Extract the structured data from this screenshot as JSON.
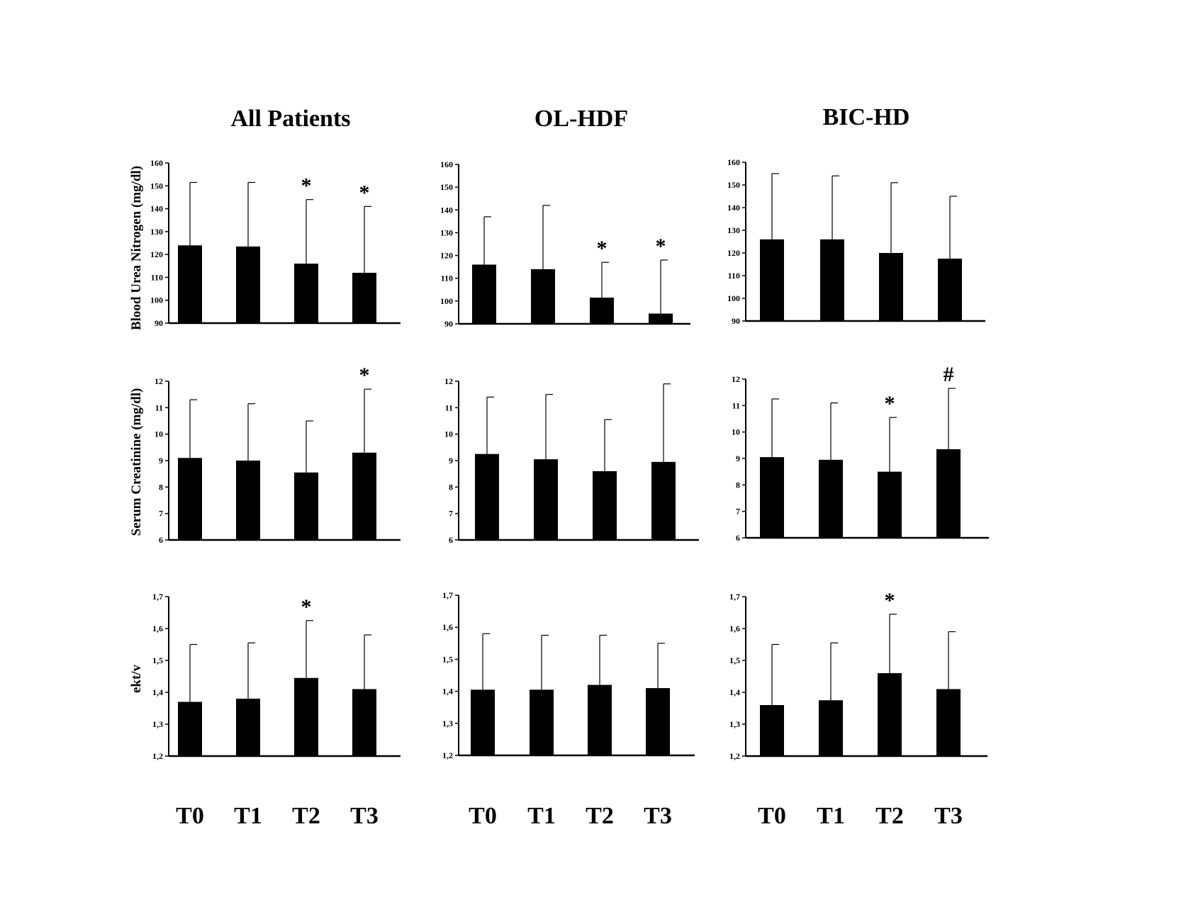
{
  "columns": [
    "All Patients",
    "OL-HDF",
    "BIC-HD"
  ],
  "row_ylabels": [
    "Blood Urea Nitrogen (mg/dl)",
    "Serum Creatinine (mg/dl)",
    "ekt/v"
  ],
  "categories": [
    "T0",
    "T1",
    "T2",
    "T3"
  ],
  "chart_data": [
    {
      "type": "bar",
      "title": "All Patients",
      "ylabel": "Blood Urea Nitrogen (mg/dl)",
      "categories": [
        "T0",
        "T1",
        "T2",
        "T3"
      ],
      "ylim": [
        90,
        160
      ],
      "yticks": [
        "90",
        "100",
        "110",
        "120",
        "130",
        "140",
        "150",
        "160"
      ],
      "values": [
        124,
        123.5,
        116,
        112
      ],
      "error_upper": [
        151.5,
        151.5,
        144,
        141
      ],
      "annotations": [
        "",
        "",
        "*",
        "*"
      ]
    },
    {
      "type": "bar",
      "title": "OL-HDF",
      "ylabel": "",
      "categories": [
        "T0",
        "T1",
        "T2",
        "T3"
      ],
      "ylim": [
        90,
        160
      ],
      "yticks": [
        "90",
        "100",
        "110",
        "120",
        "130",
        "140",
        "150",
        "160"
      ],
      "values": [
        116,
        114,
        101.5,
        94.5
      ],
      "error_upper": [
        137,
        142,
        117,
        118
      ],
      "annotations": [
        "",
        "",
        "*",
        "*"
      ]
    },
    {
      "type": "bar",
      "title": "BIC-HD",
      "ylabel": "",
      "categories": [
        "T0",
        "T1",
        "T2",
        "T3"
      ],
      "ylim": [
        90,
        160
      ],
      "yticks": [
        "90",
        "100",
        "110",
        "120",
        "130",
        "140",
        "150",
        "160"
      ],
      "values": [
        126,
        126,
        120,
        117.5
      ],
      "error_upper": [
        155,
        154,
        151,
        145
      ],
      "annotations": [
        "",
        "",
        "",
        ""
      ]
    },
    {
      "type": "bar",
      "title": "",
      "ylabel": "Serum Creatinine (mg/dl)",
      "categories": [
        "T0",
        "T1",
        "T2",
        "T3"
      ],
      "ylim": [
        6,
        12
      ],
      "yticks": [
        "6",
        "7",
        "8",
        "9",
        "10",
        "11",
        "12"
      ],
      "values": [
        9.1,
        9.0,
        8.55,
        9.3
      ],
      "error_upper": [
        11.3,
        11.15,
        10.5,
        11.7
      ],
      "annotations": [
        "",
        "",
        "",
        "*"
      ]
    },
    {
      "type": "bar",
      "title": "",
      "ylabel": "",
      "categories": [
        "T0",
        "T1",
        "T2",
        "T3"
      ],
      "ylim": [
        6,
        12
      ],
      "yticks": [
        "6",
        "7",
        "8",
        "9",
        "10",
        "11",
        "12"
      ],
      "values": [
        9.25,
        9.05,
        8.6,
        8.95
      ],
      "error_upper": [
        11.4,
        11.5,
        10.55,
        11.9
      ],
      "annotations": [
        "",
        "",
        "",
        ""
      ]
    },
    {
      "type": "bar",
      "title": "",
      "ylabel": "",
      "categories": [
        "T0",
        "T1",
        "T2",
        "T3"
      ],
      "ylim": [
        6,
        12
      ],
      "yticks": [
        "6",
        "7",
        "8",
        "9",
        "10",
        "11",
        "12"
      ],
      "values": [
        9.05,
        8.95,
        8.5,
        9.35
      ],
      "error_upper": [
        11.25,
        11.1,
        10.55,
        11.65
      ],
      "annotations": [
        "",
        "",
        "*",
        "#"
      ]
    },
    {
      "type": "bar",
      "title": "",
      "ylabel": "ekt/v",
      "categories": [
        "T0",
        "T1",
        "T2",
        "T3"
      ],
      "ylim": [
        1.2,
        1.7
      ],
      "yticks": [
        "1,2",
        "1,3",
        "1,4",
        "1,5",
        "1,6",
        "1,7"
      ],
      "values": [
        1.37,
        1.38,
        1.445,
        1.41
      ],
      "error_upper": [
        1.55,
        1.555,
        1.625,
        1.58
      ],
      "annotations": [
        "",
        "",
        "*",
        ""
      ]
    },
    {
      "type": "bar",
      "title": "",
      "ylabel": "",
      "categories": [
        "T0",
        "T1",
        "T2",
        "T3"
      ],
      "ylim": [
        1.2,
        1.7
      ],
      "yticks": [
        "1,2",
        "1,3",
        "1,4",
        "1,5",
        "1,6",
        "1,7"
      ],
      "values": [
        1.405,
        1.405,
        1.42,
        1.41
      ],
      "error_upper": [
        1.58,
        1.575,
        1.575,
        1.55
      ],
      "annotations": [
        "",
        "",
        "",
        ""
      ]
    },
    {
      "type": "bar",
      "title": "",
      "ylabel": "",
      "categories": [
        "T0",
        "T1",
        "T2",
        "T3"
      ],
      "ylim": [
        1.2,
        1.7
      ],
      "yticks": [
        "1,2",
        "1,3",
        "1,4",
        "1,5",
        "1,6",
        "1,7"
      ],
      "values": [
        1.36,
        1.375,
        1.46,
        1.41
      ],
      "error_upper": [
        1.55,
        1.555,
        1.645,
        1.59
      ],
      "annotations": [
        "",
        "",
        "*",
        ""
      ]
    }
  ]
}
